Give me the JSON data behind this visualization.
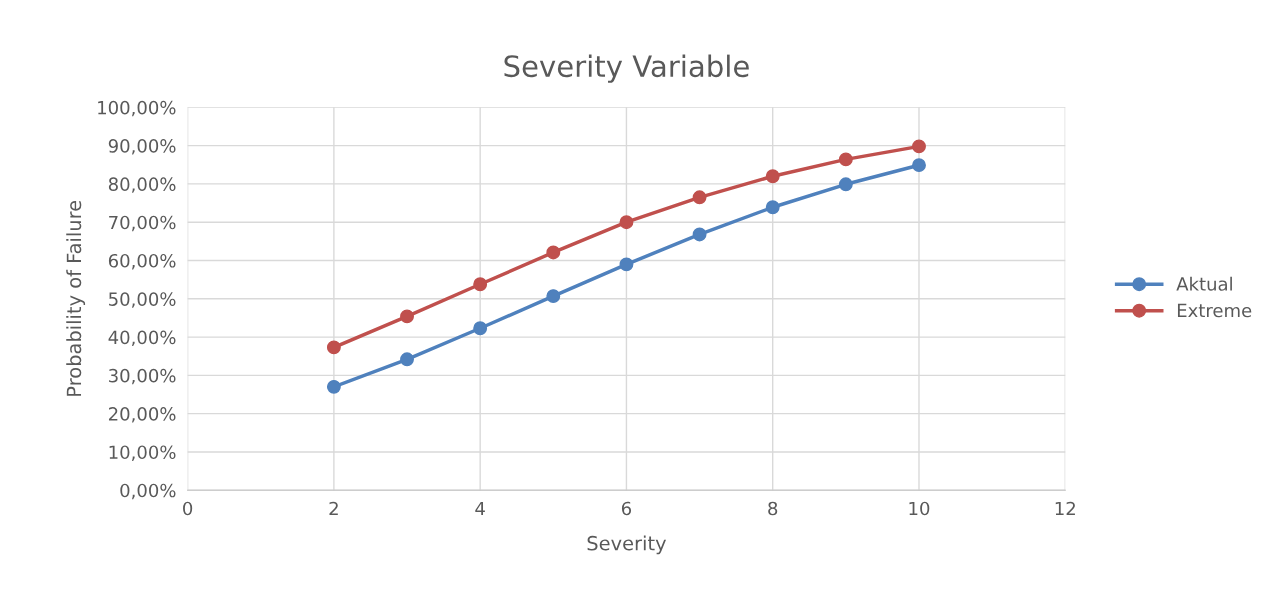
{
  "chart_data": {
    "type": "line",
    "title": "Severity Variable",
    "xlabel": "Severity",
    "ylabel": "Probability of Failure",
    "x": [
      2,
      3,
      4,
      5,
      6,
      7,
      8,
      9,
      10
    ],
    "series": [
      {
        "name": "Aktual",
        "color": "#4f81bd",
        "values": [
          27.0,
          34.2,
          42.3,
          50.7,
          59.0,
          66.8,
          73.9,
          79.9,
          84.9
        ]
      },
      {
        "name": "Extreme",
        "color": "#c0504d",
        "values": [
          37.3,
          45.4,
          53.8,
          62.1,
          70.0,
          76.5,
          82.0,
          86.4,
          89.8
        ]
      }
    ],
    "xlim": [
      0,
      12
    ],
    "xticks": [
      0,
      2,
      4,
      6,
      8,
      10,
      12
    ],
    "ylim": [
      0,
      100
    ],
    "yticks": [
      {
        "value": 0,
        "label": "0,00%"
      },
      {
        "value": 10,
        "label": "10,00%"
      },
      {
        "value": 20,
        "label": "20,00%"
      },
      {
        "value": 30,
        "label": "30,00%"
      },
      {
        "value": 40,
        "label": "40,00%"
      },
      {
        "value": 50,
        "label": "50,00%"
      },
      {
        "value": 60,
        "label": "60,00%"
      },
      {
        "value": 70,
        "label": "70,00%"
      },
      {
        "value": 80,
        "label": "80,00%"
      },
      {
        "value": 90,
        "label": "90,00%"
      },
      {
        "value": 100,
        "label": "100,00%"
      }
    ],
    "grid": true,
    "legend": "right",
    "marker": "circle",
    "line_style": "solid"
  }
}
